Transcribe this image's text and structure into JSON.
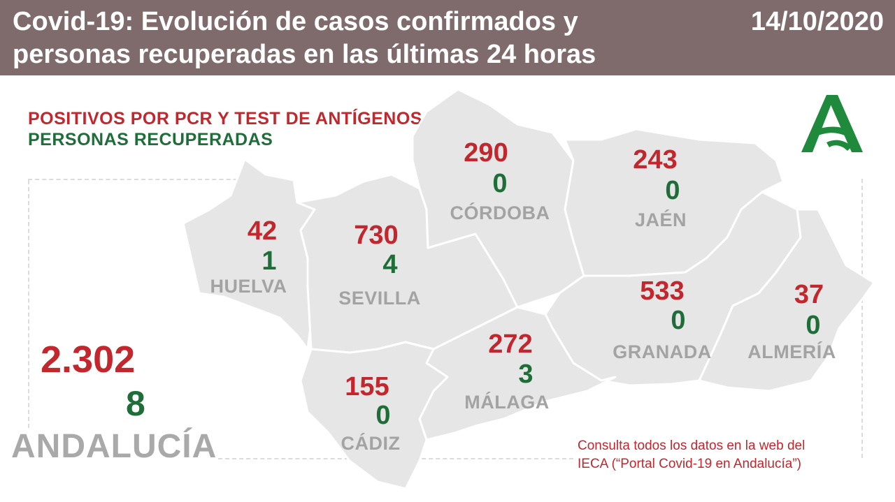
{
  "header": {
    "title": "Covid-19: Evolución de casos confirmados y personas recuperadas en las últimas 24 horas",
    "date": "14/10/2020"
  },
  "legend": {
    "positives": "POSITIVOS POR PCR Y TEST DE ANTÍGENOS",
    "recovered": "PERSONAS RECUPERADAS"
  },
  "provinces": {
    "huelva": {
      "name": "HUELVA",
      "positives": "42",
      "recovered": "1"
    },
    "sevilla": {
      "name": "SEVILLA",
      "positives": "730",
      "recovered": "4"
    },
    "cordoba": {
      "name": "CÓRDOBA",
      "positives": "290",
      "recovered": "0"
    },
    "jaen": {
      "name": "JAÉN",
      "positives": "243",
      "recovered": "0"
    },
    "granada": {
      "name": "GRANADA",
      "positives": "533",
      "recovered": "0"
    },
    "almeria": {
      "name": "ALMERÍA",
      "positives": "37",
      "recovered": "0"
    },
    "malaga": {
      "name": "MÁLAGA",
      "positives": "272",
      "recovered": "3"
    },
    "cadiz": {
      "name": "CÁDIZ",
      "positives": "155",
      "recovered": "0"
    }
  },
  "total": {
    "name": "ANDALUCÍA",
    "positives": "2.302",
    "recovered": "8"
  },
  "source": {
    "line1": "Consulta todos los datos en la web del",
    "line2": "IECA (“Portal Covid-19 en Andalucía”)"
  },
  "colors": {
    "header_bg": "#7f6b6c",
    "positives": "#c1272d",
    "recovered": "#1f6e3a",
    "map_fill": "#e6e6e6",
    "border": "#ffffff",
    "logo": "#1f8a3c"
  }
}
